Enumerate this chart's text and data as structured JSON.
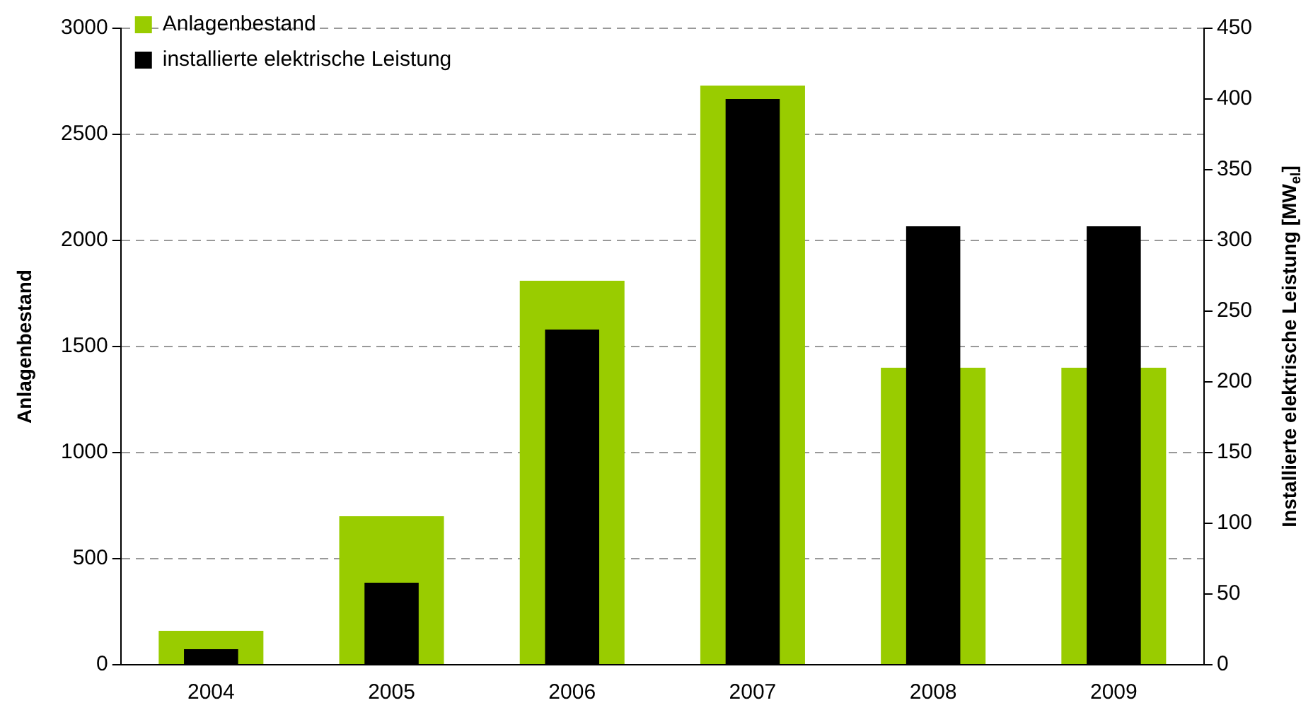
{
  "chart_data": {
    "type": "bar",
    "categories": [
      "2004",
      "2005",
      "2006",
      "2007",
      "2008",
      "2009"
    ],
    "series": [
      {
        "name": "Anlagenbestand",
        "color": "#99cc00",
        "values": [
          160,
          700,
          1810,
          2730,
          1400,
          1400
        ]
      },
      {
        "name": "installierte elektrische Leistung",
        "color": "#000000",
        "values": [
          11,
          58,
          237,
          400,
          310,
          310
        ],
        "axis": "y2"
      }
    ],
    "ylabel": "Anlagenbestand",
    "y2label": "Installierte elektrische Leistung [MW$_{el}$]",
    "ylim": [
      0,
      3000
    ],
    "yticks": [
      0,
      500,
      1000,
      1500,
      2000,
      2500,
      3000
    ],
    "y2lim": [
      0,
      450
    ],
    "y2ticks": [
      0,
      50,
      100,
      150,
      200,
      250,
      300,
      350,
      400,
      450
    ],
    "grid": "y",
    "legend": "top left"
  }
}
